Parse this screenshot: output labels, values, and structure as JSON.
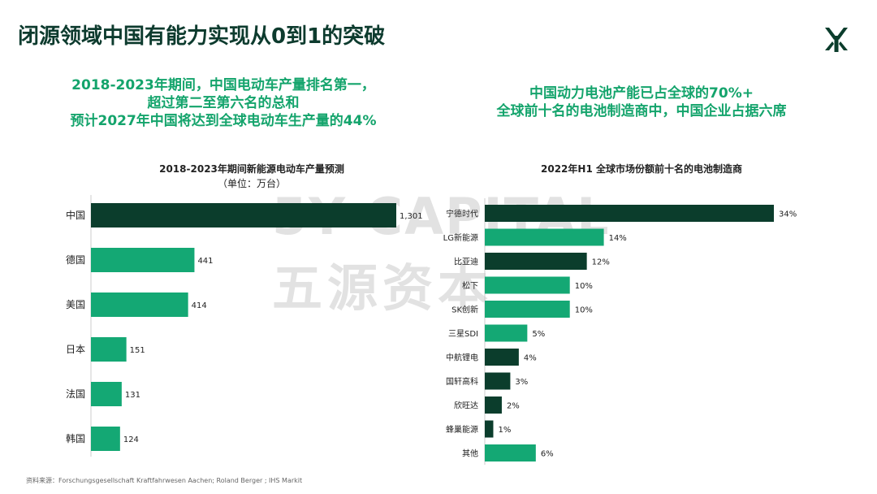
{
  "page": {
    "title": "闭源领域中国有能力实现从0到1的突破",
    "source": "资料来源：Forschungsgesellschaft Kraftfahrwesen Aachen; Roland Berger ; IHS Markit"
  },
  "headline_left": {
    "lines": [
      "2018-2023年期间，中国电动车产量排名第一，",
      "超过第二至第六名的总和",
      "预计2027年中国将达到全球电动车生产量的44%"
    ]
  },
  "headline_right": {
    "lines": [
      "中国动力电池产能已占全球的70%+",
      "全球前十名的电池制造商中，中国企业占据六席"
    ]
  },
  "watermark": {
    "line1": "5Y CAPITAL",
    "line2": "五源资本"
  },
  "colors": {
    "dark": "#0b3d2c",
    "green": "#14a874",
    "title": "#0d3b2e",
    "headline": "#14a46c"
  },
  "chart_data": [
    {
      "type": "bar",
      "orientation": "horizontal",
      "title": "2018-2023年期间新能源电动车产量预测",
      "unit": "（单位：万台）",
      "categories": [
        "中国",
        "德国",
        "美国",
        "日本",
        "法国",
        "韩国"
      ],
      "values": [
        1301,
        441,
        414,
        151,
        131,
        124
      ],
      "value_labels": [
        "1,301",
        "441",
        "414",
        "151",
        "131",
        "124"
      ],
      "bar_colors": [
        "#0b3d2c",
        "#14a874",
        "#14a874",
        "#14a874",
        "#14a874",
        "#14a874"
      ],
      "xlim": [
        0,
        1301
      ]
    },
    {
      "type": "bar",
      "orientation": "horizontal",
      "title": "2022年H1 全球市场份额前十名的电池制造商",
      "categories": [
        "宁德时代",
        "LG新能源",
        "比亚迪",
        "松下",
        "SK创新",
        "三星SDI",
        "中航锂电",
        "国轩高科",
        "欣旺达",
        "蜂巢能源",
        "其他"
      ],
      "values": [
        34,
        14,
        12,
        10,
        10,
        5,
        4,
        3,
        2,
        1,
        6
      ],
      "value_labels": [
        "34%",
        "14%",
        "12%",
        "10%",
        "10%",
        "5%",
        "4%",
        "3%",
        "2%",
        "1%",
        "6%"
      ],
      "bar_colors": [
        "#0b3d2c",
        "#14a874",
        "#0b3d2c",
        "#14a874",
        "#14a874",
        "#14a874",
        "#0b3d2c",
        "#0b3d2c",
        "#0b3d2c",
        "#0b3d2c",
        "#14a874"
      ],
      "xlim": [
        0,
        34
      ]
    }
  ]
}
